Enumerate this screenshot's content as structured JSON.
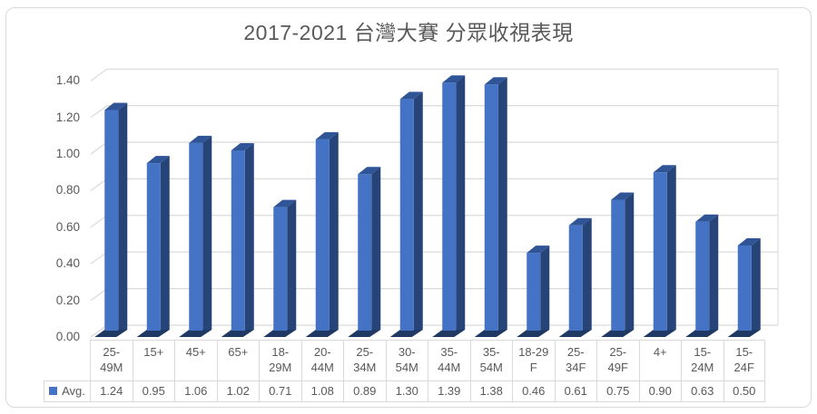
{
  "chart_data": {
    "type": "bar",
    "style": "3d-clustered-column",
    "title": "2017-2021 台灣大賽 分眾收視表現",
    "categories": [
      "25-49M",
      "15+",
      "45+",
      "65+",
      "18-29M",
      "20-44M",
      "25-34M",
      "30-54M",
      "35-44M",
      "35-54M",
      "18-29F",
      "25-34F",
      "25-49F",
      "4+",
      "15-24M",
      "15-24F"
    ],
    "categories_wrapped": [
      [
        "25-",
        "49M"
      ],
      [
        "15+"
      ],
      [
        "45+"
      ],
      [
        "65+"
      ],
      [
        "18-",
        "29M"
      ],
      [
        "20-",
        "44M"
      ],
      [
        "25-",
        "34M"
      ],
      [
        "30-",
        "54M"
      ],
      [
        "35-",
        "44M"
      ],
      [
        "35-",
        "54M"
      ],
      [
        "18-29",
        "F"
      ],
      [
        "25-",
        "34F"
      ],
      [
        "25-",
        "49F"
      ],
      [
        "4+"
      ],
      [
        "15-",
        "24M"
      ],
      [
        "15-",
        "24F"
      ]
    ],
    "series": [
      {
        "name": "Avg.",
        "values": [
          1.24,
          0.95,
          1.06,
          1.02,
          0.71,
          1.08,
          0.89,
          1.3,
          1.39,
          1.38,
          0.46,
          0.61,
          0.75,
          0.9,
          0.63,
          0.5
        ],
        "values_display": [
          "1.24",
          "0.95",
          "1.06",
          "1.02",
          "0.71",
          "1.08",
          "0.89",
          "1.30",
          "1.39",
          "1.38",
          "0.46",
          "0.61",
          "0.75",
          "0.90",
          "0.63",
          "0.50"
        ]
      }
    ],
    "xlabel": "",
    "ylabel": "",
    "ylim": [
      0,
      1.4
    ],
    "ytick_step": 0.2,
    "ytick_labels": [
      "0.00",
      "0.20",
      "0.40",
      "0.60",
      "0.80",
      "1.00",
      "1.20",
      "1.40"
    ],
    "grid": true,
    "legend_position": "data-table-bottom-left",
    "colors": {
      "bar_front": "#4472C4",
      "bar_top": "#2F5597",
      "bar_side": "#264478",
      "bar_bottom": "#1F3864",
      "gridline": "#D9D9D9",
      "table_border": "#D9D9D9",
      "text": "#595959",
      "frame_border": "#D9D9D9"
    }
  }
}
